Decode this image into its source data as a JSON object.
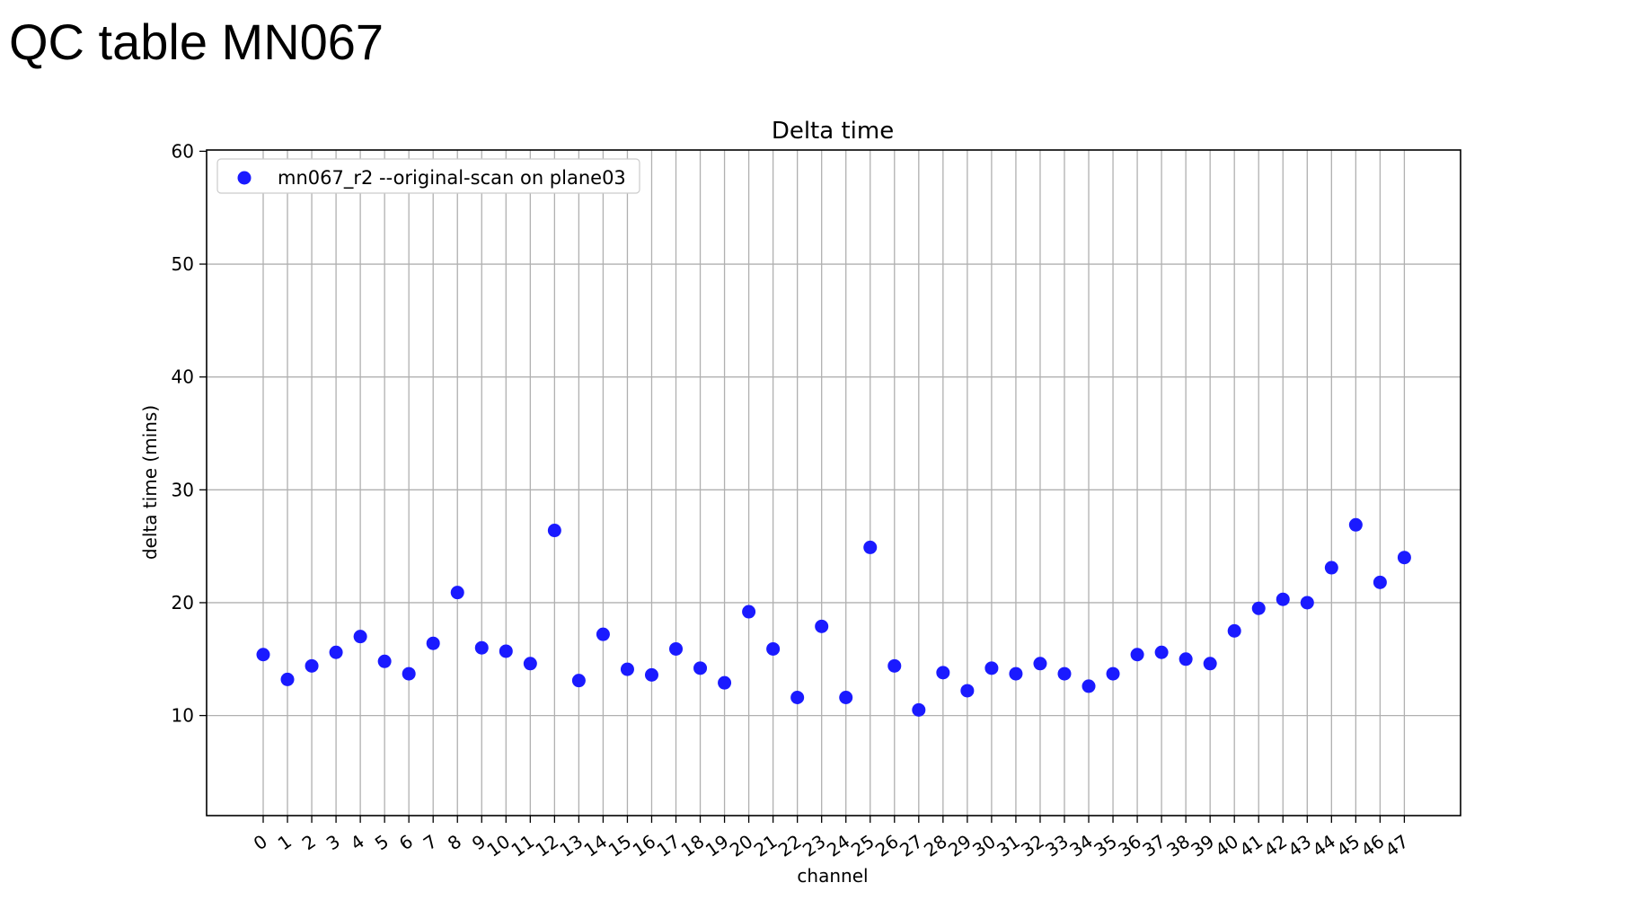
{
  "slide": {
    "title": "QC table MN067"
  },
  "chart_data": {
    "type": "scatter",
    "title": "Delta time",
    "xlabel": "channel",
    "ylabel": "delta time (mins)",
    "x": [
      0,
      1,
      2,
      3,
      4,
      5,
      6,
      7,
      8,
      9,
      10,
      11,
      12,
      13,
      14,
      15,
      16,
      17,
      18,
      19,
      20,
      21,
      22,
      23,
      24,
      25,
      26,
      27,
      28,
      29,
      30,
      31,
      32,
      33,
      34,
      35,
      36,
      37,
      38,
      39,
      40,
      41,
      42,
      43,
      44,
      45,
      46,
      47
    ],
    "series": [
      {
        "name": "mn067_r2 --original-scan on plane03",
        "color": "#1a1aff",
        "values": [
          15.4,
          13.2,
          14.4,
          15.6,
          17.0,
          14.8,
          13.7,
          16.4,
          20.9,
          16.0,
          15.7,
          14.6,
          26.4,
          13.1,
          17.2,
          14.1,
          13.6,
          15.9,
          14.2,
          12.9,
          19.2,
          15.9,
          11.6,
          17.9,
          11.6,
          24.9,
          14.4,
          10.5,
          13.8,
          12.2,
          14.2,
          13.7,
          14.6,
          13.7,
          12.6,
          13.7,
          15.4,
          15.6,
          15.0,
          14.6,
          17.5,
          19.5,
          20.3,
          20.0,
          23.1,
          26.9,
          21.8,
          24.0
        ]
      }
    ],
    "ylim": [
      1,
      60
    ],
    "yticks": [
      10,
      20,
      30,
      40,
      50,
      60
    ],
    "grid": true,
    "legend_position": "top-left"
  }
}
